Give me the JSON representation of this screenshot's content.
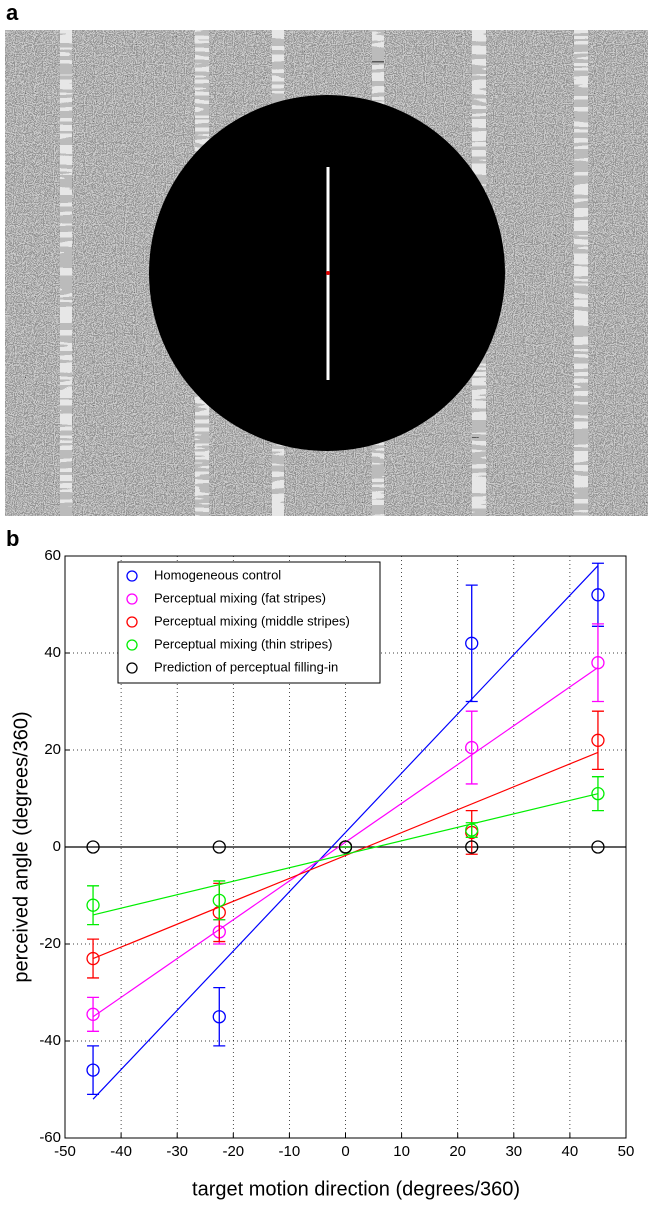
{
  "image_panel": {
    "label": "a"
  },
  "chart_data": {
    "type": "scatter",
    "panel_label": "b",
    "x_label": "target motion direction (degrees/360)",
    "y_label": "perceived angle (degrees/360)",
    "xlim": [
      -50,
      50
    ],
    "ylim": [
      -60,
      60
    ],
    "xticks": [
      -50,
      -40,
      -30,
      -20,
      -10,
      0,
      10,
      20,
      30,
      40,
      50
    ],
    "yticks": [
      -60,
      -40,
      -20,
      0,
      20,
      40,
      60
    ],
    "grid": true,
    "legend": "upper left",
    "hline": 0,
    "x": [
      -45,
      -22.5,
      0,
      22.5,
      45
    ],
    "fit_x": [
      -45,
      45
    ],
    "series": [
      {
        "name": "Homogeneous control",
        "color": "#0000ff",
        "values": [
          -46,
          -35,
          0,
          42,
          52
        ],
        "errors": [
          5,
          6,
          0,
          12,
          6.5
        ],
        "fit": [
          -52,
          58
        ]
      },
      {
        "name": "Perceptual mixing (fat stripes)",
        "color": "#ff00ff",
        "values": [
          -34.5,
          -17.5,
          0,
          20.5,
          38
        ],
        "errors": [
          3.5,
          2.5,
          0,
          7.5,
          8
        ],
        "fit": [
          -35,
          37
        ]
      },
      {
        "name": "Perceptual mixing (middle stripes)",
        "color": "#ff0000",
        "values": [
          -23,
          -13.5,
          0,
          3,
          22
        ],
        "errors": [
          4,
          6,
          0,
          4.5,
          6
        ],
        "fit": [
          -23,
          19.5
        ]
      },
      {
        "name": "Perceptual mixing (thin stripes)",
        "color": "#00ee00",
        "values": [
          -12,
          -11,
          0,
          3.5,
          11
        ],
        "errors": [
          4,
          4,
          0,
          1.5,
          3.5
        ],
        "fit": [
          -14,
          11
        ]
      },
      {
        "name": "Prediction of perceptual filling-in",
        "color": "#000000",
        "values": [
          0,
          0,
          0,
          0,
          0
        ]
      }
    ]
  }
}
